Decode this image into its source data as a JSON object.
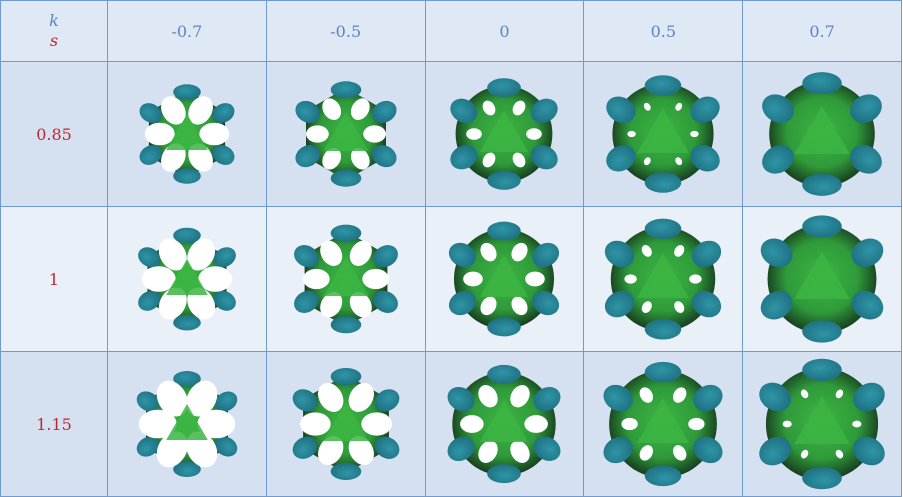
{
  "header": {
    "k_symbol": "k",
    "s_symbol": "s",
    "k_values": [
      "-0.7",
      "-0.5",
      "0",
      "0.5",
      "0.7"
    ]
  },
  "rows": [
    {
      "s_value": "0.85",
      "shapes": [
        "green-blue-surface",
        "green-blue-surface",
        "green-blue-surface",
        "green-blue-surface",
        "green-blue-surface"
      ]
    },
    {
      "s_value": "1",
      "shapes": [
        "green-blue-surface",
        "green-blue-surface",
        "green-blue-surface",
        "green-blue-surface",
        "green-blue-surface"
      ]
    },
    {
      "s_value": "1.15",
      "shapes": [
        "green-blue-surface",
        "green-blue-surface",
        "green-blue-surface",
        "green-blue-surface",
        "green-blue-surface"
      ]
    }
  ],
  "colors": {
    "grid_line": "#6f9bd1",
    "header_text": "#5b86c2",
    "row_label_text": "#c0282d",
    "surface_green": "#3cb543",
    "surface_teal": "#1d6f80",
    "surface_dark": "#14301c"
  }
}
